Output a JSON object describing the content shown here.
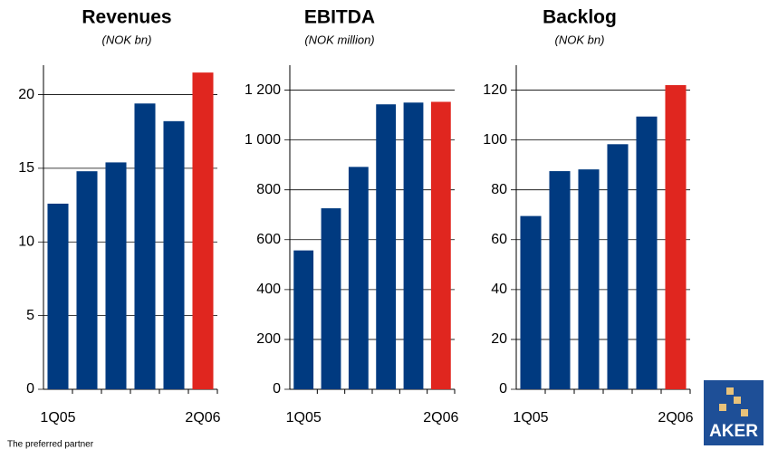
{
  "chart_data": [
    {
      "type": "bar",
      "title": "Revenues",
      "subtitle": "(NOK bn)",
      "categories": [
        "1Q05",
        null,
        null,
        null,
        null,
        "2Q06"
      ],
      "values": [
        12.6,
        14.8,
        15.4,
        19.4,
        18.2,
        21.5
      ],
      "colors": [
        "#003a80",
        "#003a80",
        "#003a80",
        "#003a80",
        "#003a80",
        "#e0261f"
      ],
      "ylim": [
        0,
        22
      ],
      "yticks": [
        0,
        5,
        10,
        15,
        20
      ],
      "grid": true
    },
    {
      "type": "bar",
      "title": "EBITDA",
      "subtitle": "(NOK million)",
      "categories": [
        "1Q05",
        null,
        null,
        null,
        null,
        "2Q06"
      ],
      "values": [
        557,
        726,
        892,
        1143,
        1150,
        1153
      ],
      "colors": [
        "#003a80",
        "#003a80",
        "#003a80",
        "#003a80",
        "#003a80",
        "#e0261f"
      ],
      "ylim": [
        0,
        1300
      ],
      "yticks": [
        0,
        200,
        400,
        600,
        800,
        {
          "value": 1000,
          "label": "1 000"
        },
        {
          "value": 1200,
          "label": "1 200"
        }
      ],
      "grid": true
    },
    {
      "type": "bar",
      "title": "Backlog",
      "subtitle": "(NOK bn)",
      "categories": [
        "1Q05",
        null,
        null,
        null,
        null,
        "2Q06"
      ],
      "values": [
        69.5,
        87.5,
        88.2,
        98.3,
        109.4,
        122
      ],
      "colors": [
        "#003a80",
        "#003a80",
        "#003a80",
        "#003a80",
        "#003a80",
        "#e0261f"
      ],
      "ylim": [
        0,
        130
      ],
      "yticks": [
        0,
        20,
        40,
        60,
        80,
        100,
        120
      ],
      "grid": true
    }
  ],
  "footer": "The preferred partner",
  "logo": "AKER"
}
